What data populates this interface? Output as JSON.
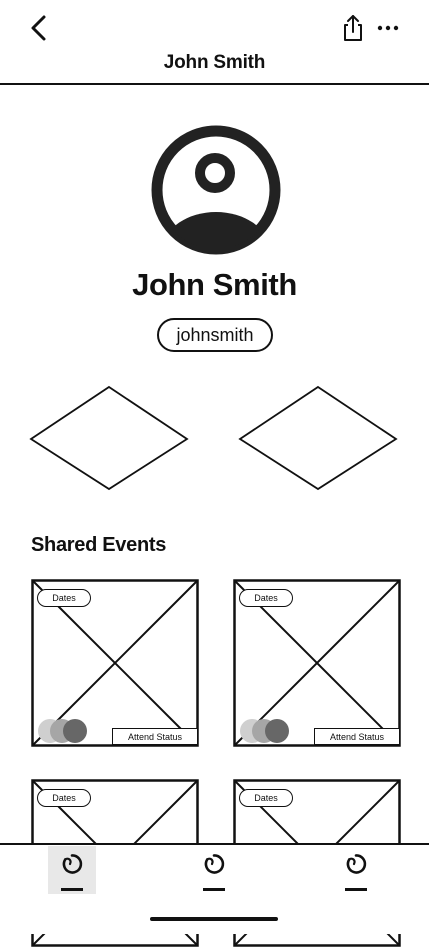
{
  "header": {
    "title": "John Smith"
  },
  "profile": {
    "name": "John Smith",
    "username": "johnsmith"
  },
  "shared_events": {
    "title": "Shared Events",
    "cards": [
      {
        "date_label": "Dates",
        "attend_label": "Attend Status"
      },
      {
        "date_label": "Dates",
        "attend_label": "Attend Status"
      },
      {
        "date_label": "Dates"
      },
      {
        "date_label": "Dates"
      }
    ]
  },
  "icons": {
    "back": "chevron-left-icon",
    "share": "share-icon",
    "more": "more-horizontal-icon",
    "avatar": "user-circle-icon",
    "nav": "loop-icon"
  },
  "colors": {
    "ink": "#111111",
    "nav_active_bg": "#e8e8e8",
    "attendee_1": "#cfcfcf",
    "attendee_2": "#a6a6a6",
    "attendee_3": "#676767"
  },
  "nav": {
    "items": [
      {
        "name": "nav-tab-1",
        "active": true
      },
      {
        "name": "nav-tab-2",
        "active": false
      },
      {
        "name": "nav-tab-3",
        "active": false
      }
    ]
  }
}
